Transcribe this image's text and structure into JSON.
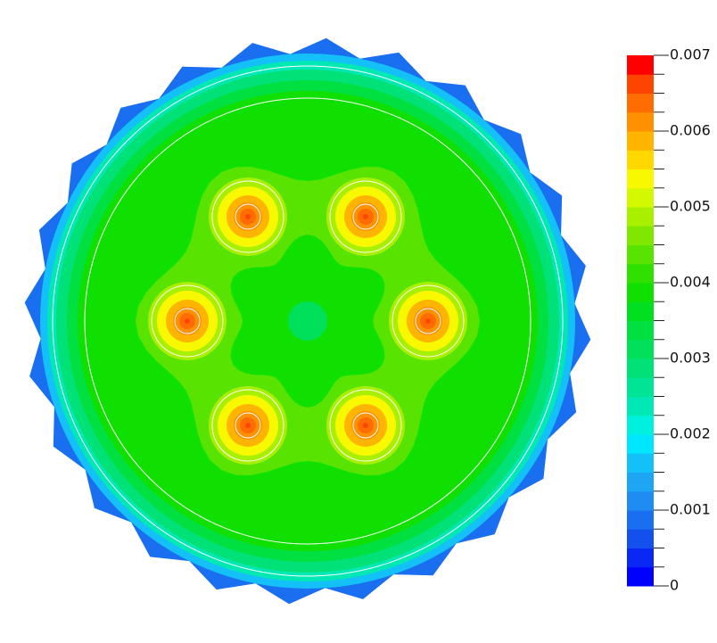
{
  "chart_data": {
    "type": "contour",
    "colorbar": {
      "clim": [
        0,
        0.007
      ],
      "ticks": [
        0,
        0.001,
        0.002,
        0.003,
        0.004,
        0.005,
        0.006,
        0.007
      ],
      "colors": [
        "#0000ff",
        "#0a28f5",
        "#1450ee",
        "#1a6ef0",
        "#1e8cf2",
        "#1ea6f4",
        "#14c0f8",
        "#00e6ff",
        "#00f0e0",
        "#00e8b4",
        "#00e496",
        "#00e278",
        "#00e05a",
        "#00e040",
        "#00e020",
        "#10e000",
        "#30e000",
        "#58e400",
        "#80e800",
        "#a8f000",
        "#d4f800",
        "#f8f800",
        "#ffd800",
        "#ffb400",
        "#ff9000",
        "#ff6c00",
        "#ff4400",
        "#ff0000"
      ]
    }
  }
}
